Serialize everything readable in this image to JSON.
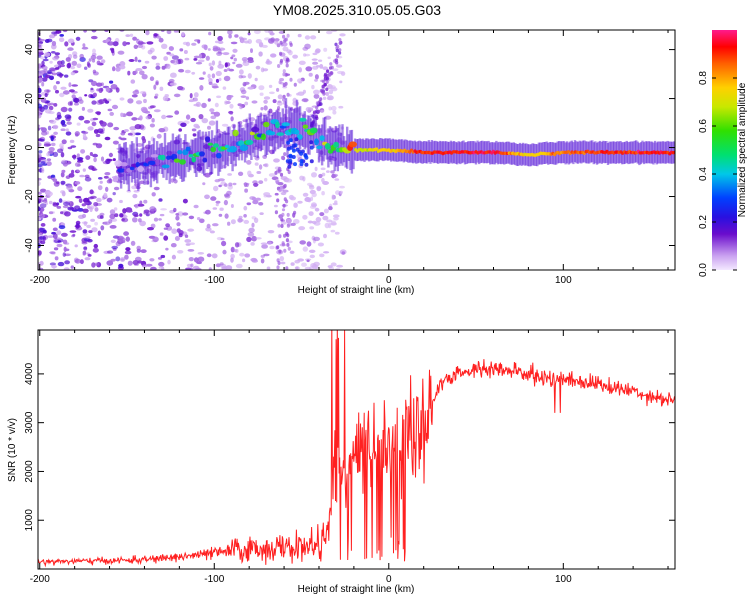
{
  "title": "YM08.2025.310.05.05.G03",
  "chart_data": [
    {
      "type": "heatmap",
      "panel": "spectrogram",
      "xlabel": "Height of straight line (km)",
      "ylabel": "Frequency (Hz)",
      "xlim": [
        -201,
        164
      ],
      "ylim": [
        -50,
        48
      ],
      "xticks": [
        -200,
        -100,
        0,
        100
      ],
      "xticklabels": [
        "-200",
        "-100",
        "0",
        "100"
      ],
      "yticks": [
        -40,
        -20,
        0,
        20,
        40
      ],
      "yticklabels": [
        "-40",
        "-20",
        "0",
        "20",
        "40"
      ],
      "colorbar": {
        "label": "Normalized spectral amplitude",
        "range": [
          0,
          1
        ],
        "ticks": [
          0.0,
          0.2,
          0.4,
          0.6,
          0.8
        ],
        "ticklabels": [
          "0.0",
          "0.2",
          "0.4",
          "0.6",
          "0.8"
        ]
      },
      "ridge": {
        "description_points_x": [
          -150,
          -120,
          -100,
          -80,
          -60,
          -45,
          -35,
          -20,
          0,
          20,
          60,
          80,
          100,
          164
        ],
        "frequency_hz": [
          -7,
          -4,
          -2,
          4,
          8,
          7,
          0,
          -1,
          -1,
          -2,
          -2,
          -3,
          -2,
          -2
        ],
        "amplitude": [
          0.15,
          0.35,
          0.4,
          0.45,
          0.45,
          0.5,
          0.55,
          0.7,
          0.75,
          0.9,
          0.95,
          0.7,
          0.85,
          0.95
        ]
      }
    },
    {
      "type": "line",
      "panel": "snr",
      "xlabel": "Height of straight line (km)",
      "ylabel": "SNR (10 * v/v)",
      "xlim": [
        -201,
        164
      ],
      "ylim": [
        0,
        4900
      ],
      "xticks": [
        -200,
        -100,
        0,
        100
      ],
      "xticklabels": [
        "-200",
        "-100",
        "0",
        "100"
      ],
      "yticks": [
        1000,
        2000,
        3000,
        4000
      ],
      "yticklabels": [
        "1000",
        "2000",
        "3000",
        "4000"
      ],
      "series": [
        {
          "name": "SNR",
          "color": "#ff2020",
          "x": [
            -200,
            -180,
            -160,
            -140,
            -120,
            -100,
            -90,
            -80,
            -70,
            -60,
            -50,
            -40,
            -35,
            -30,
            -25,
            -20,
            -15,
            -10,
            -5,
            0,
            5,
            10,
            15,
            20,
            25,
            30,
            40,
            50,
            60,
            70,
            80,
            90,
            100,
            110,
            120,
            130,
            140,
            150,
            164
          ],
          "values": [
            150,
            160,
            170,
            190,
            250,
            320,
            380,
            400,
            420,
            430,
            450,
            500,
            700,
            2300,
            1900,
            2300,
            2500,
            2500,
            2600,
            2700,
            2750,
            2900,
            2900,
            3000,
            3400,
            3800,
            4000,
            4100,
            4100,
            4050,
            4000,
            3900,
            3900,
            3850,
            3800,
            3700,
            3650,
            3550,
            3450
          ]
        }
      ]
    }
  ]
}
